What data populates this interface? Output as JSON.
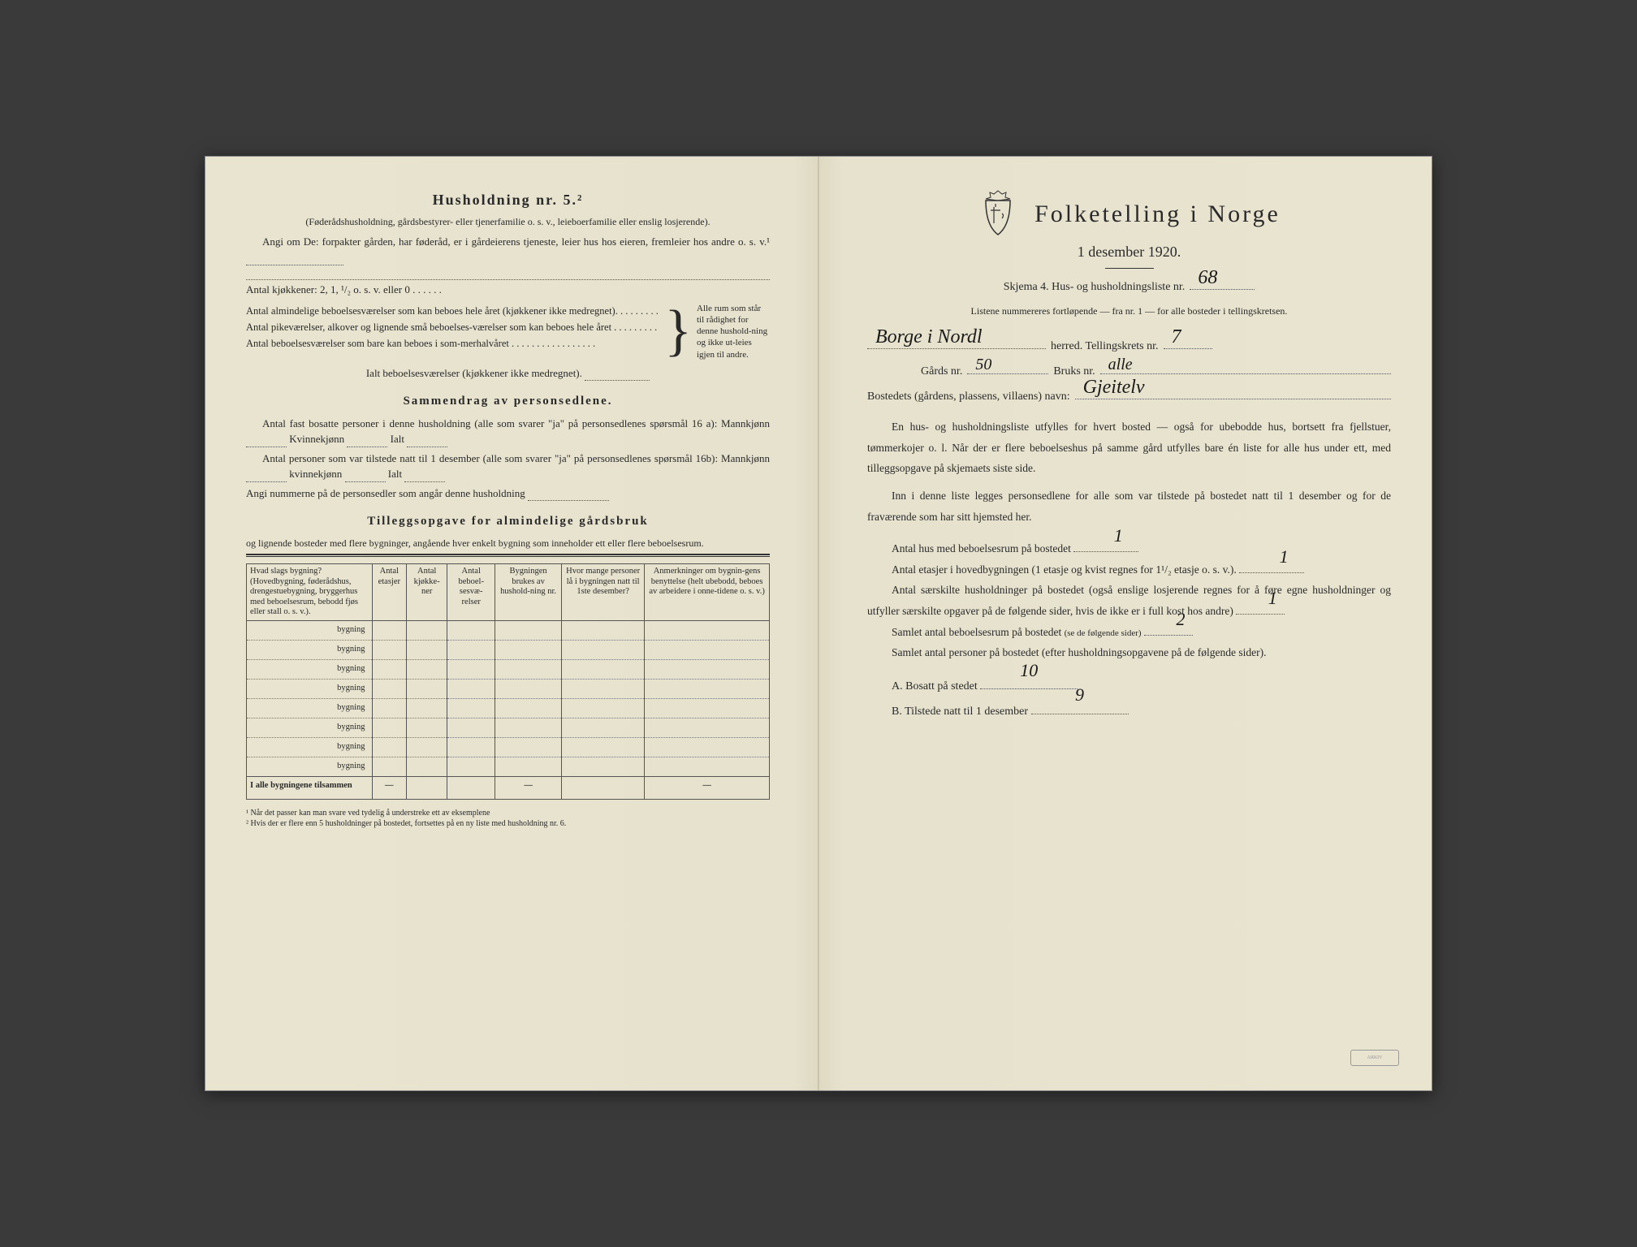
{
  "left": {
    "heading": "Husholdning nr. 5.²",
    "subtitle": "(Føderådshusholdning, gårdsbestyrer- eller tjenerfamilie o. s. v., leieboerfamilie eller enslig losjerende).",
    "angi_line": "Angi om De: forpakter gården, har føderåd, er i gårdeierens tjeneste, leier hus hos eieren, fremleier hos andre o. s. v.¹",
    "kjokken_line": "Antal kjøkkener: 2, 1, ¹/₂ o. s. v. eller 0 . . . . . .",
    "bracket_items": [
      "Antal almindelige beboelsesværelser som kan beboes hele året (kjøkkener ikke medregnet). . . . . . . . .",
      "Antal pikeværelser, alkover og lignende små beboelses-værelser som kan beboes hele året . . . . . . . . .",
      "Antal beboelsesværelser som bare kan beboes i som-merhalvåret . . . . . . . . . . . . . . . . ."
    ],
    "bracket_right": "Alle rum som står til rådighet for denne hushold-ning og ikke ut-leies igjen til andre.",
    "ialt_line": "Ialt beboelsesværelser (kjøkkener ikke medregnet).",
    "section2_title": "Sammendrag av personsedlene.",
    "section2_lines": [
      "Antal fast bosatte personer i denne husholdning (alle som svarer \"ja\" på personsedlenes spørsmål 16 a): Mannkjønn",
      "Kvinnekjønn",
      "Ialt",
      "Antal personer som var tilstede natt til 1 desember (alle som svarer \"ja\" på personsedlenes spørsmål 16b): Mannkjønn",
      "kvinnekjønn",
      "Ialt",
      "Angi nummerne på de personsedler som angår denne husholdning"
    ],
    "section3_title": "Tilleggsopgave for almindelige gårdsbruk",
    "section3_sub": "og lignende bosteder med flere bygninger, angående hver enkelt bygning som inneholder ett eller flere beboelsesrum.",
    "table": {
      "headers": [
        "Hvad slags bygning?\n(Hovedbygning, føderådshus, drengestuebygning, bryggerhus med beboelsesrum, bebodd fjøs eller stall o. s. v.).",
        "Antal etasjer",
        "Antal kjøkke-ner",
        "Antal beboel-sesvæ-relser",
        "Bygningen brukes av hushold-ning nr.",
        "Hvor mange personer lå i bygningen natt til 1ste desember?",
        "Anmerkninger om bygnin-gens benyttelse (helt ubebodd, beboes av arbeidere i onne-tidene o. s. v.)"
      ],
      "row_label": "bygning",
      "row_count": 8,
      "sum_label": "I alle bygningene tilsammen"
    },
    "footnotes": [
      "¹ Når det passer kan man svare ved tydelig å understreke ett av eksemplene",
      "² Hvis der er flere enn 5 husholdninger på bostedet, fortsettes på en ny liste med husholdning nr. 6."
    ]
  },
  "right": {
    "main_title": "Folketelling i Norge",
    "date": "1 desember 1920.",
    "skjema_line": "Skjema 4.   Hus- og husholdningsliste nr.",
    "skjema_value": "68",
    "listene_line": "Listene nummereres fortløpende — fra nr. 1 — for alle bosteder i tellingskretsen.",
    "herred_value": "Borge i Nordl",
    "herred_label": "herred.   Tellingskrets nr.",
    "krets_value": "7",
    "gards_label": "Gårds nr.",
    "gards_value": "50",
    "bruks_label": "Bruks nr.",
    "bruks_value": "alle",
    "bosted_label": "Bostedets (gårdens, plassens, villaens) navn:",
    "bosted_value": "Gjeitelv",
    "body1": "En hus- og husholdningsliste utfylles for hvert bosted — også for ubebodde hus, bortsett fra fjellstuer, tømmerkojer o. l. Når der er flere beboelseshus på samme gård utfylles bare én liste for alle hus under ett, med tilleggsopgave på skjemaets siste side.",
    "body2": "Inn i denne liste legges personsedlene for alle som var tilstede på bostedet natt til 1 desember og for de fraværende som har sitt hjemsted her.",
    "q1_label": "Antal hus med beboelsesrum på bostedet",
    "q1_value": "1",
    "q2_label_a": "Antal etasjer i hovedbygningen (1 etasje og kvist regnes for 1¹/₂ etasje o. s. v.).",
    "q2_value": "1",
    "q3_label": "Antal særskilte husholdninger på bostedet (også enslige losjerende regnes for å føre egne husholdninger og utfyller særskilte opgaver på de følgende sider, hvis de ikke er i full kost hos andre)",
    "q3_value": "1",
    "q4_label": "Samlet antal beboelsesrum på bostedet",
    "q4_note": "(se de følgende sider)",
    "q4_value": "2",
    "q5_label": "Samlet antal personer på bostedet (efter husholdningsopgavene på de følgende sider).",
    "qA_label": "A.  Bosatt på stedet",
    "qA_value": "10",
    "qB_label": "B.  Tilstede natt til 1 desember",
    "qB_value": "9"
  }
}
